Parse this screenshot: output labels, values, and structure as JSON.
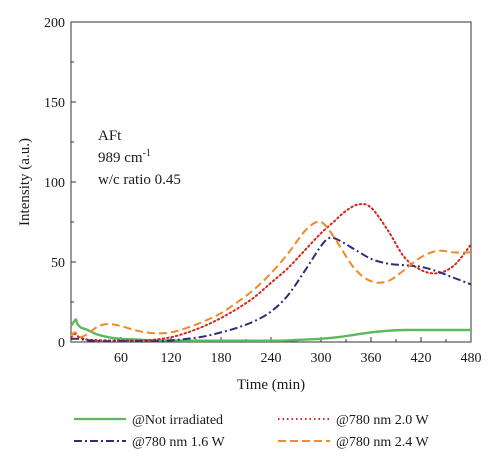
{
  "chart_data": {
    "type": "line",
    "xlabel": "Time (min)",
    "ylabel": "Intensity (a.u.)",
    "xlim": [
      0,
      480
    ],
    "ylim": [
      0,
      200
    ],
    "xticks": [
      60,
      120,
      180,
      240,
      300,
      360,
      420,
      480
    ],
    "yticks": [
      0,
      50,
      100,
      150,
      200
    ],
    "grid": false,
    "legend_position": "bottom",
    "annotation": {
      "line1": "AFt",
      "line2_base": "989 cm",
      "line2_sup": "-1",
      "line3": "w/c ratio 0.45"
    },
    "series": [
      {
        "name": "@Not irradiated",
        "color": "#5cb85c",
        "dash": "solid",
        "x": [
          0,
          4,
          6,
          8,
          12,
          20,
          30,
          45,
          60,
          80,
          100,
          120,
          140,
          160,
          180,
          200,
          220,
          240,
          260,
          280,
          300,
          320,
          340,
          360,
          380,
          400,
          420,
          440,
          460,
          480
        ],
        "y": [
          10,
          13,
          14,
          11,
          9,
          7.5,
          5,
          3,
          2,
          1.5,
          1,
          1,
          0.8,
          0.8,
          0.8,
          0.8,
          0.8,
          0.8,
          1,
          1.5,
          2,
          3,
          4.5,
          6,
          7,
          7.5,
          7.5,
          7.5,
          7.5,
          7.5
        ]
      },
      {
        "name": "@780 nm 2.0 W",
        "color": "#d7261e",
        "dash": "dotted",
        "x": [
          0,
          5,
          10,
          20,
          40,
          60,
          80,
          100,
          120,
          140,
          160,
          180,
          200,
          220,
          240,
          260,
          280,
          300,
          315,
          330,
          345,
          360,
          380,
          400,
          420,
          440,
          460,
          480
        ],
        "y": [
          3,
          5,
          3,
          1.5,
          1,
          1,
          1,
          1.5,
          3,
          6,
          10,
          15,
          21,
          28,
          37,
          46,
          57,
          68,
          75,
          82,
          86,
          84,
          70,
          53,
          45,
          43,
          48,
          61
        ]
      },
      {
        "name": "@780 nm 1.6 W",
        "color": "#2e2e7a",
        "dash": "dashdot",
        "x": [
          0,
          10,
          20,
          40,
          60,
          80,
          100,
          120,
          140,
          160,
          180,
          200,
          220,
          240,
          260,
          280,
          300,
          310,
          320,
          340,
          360,
          380,
          400,
          420,
          440,
          460,
          480
        ],
        "y": [
          2,
          2,
          1,
          0.5,
          0.5,
          0.5,
          0.5,
          1,
          2,
          3.5,
          6,
          9,
          13,
          19,
          29,
          44,
          60,
          65,
          64,
          58,
          52,
          49,
          48,
          47,
          44,
          40,
          36
        ]
      },
      {
        "name": "@780 nm 2.4 W",
        "color": "#f08a24",
        "dash": "dashed",
        "x": [
          0,
          5,
          10,
          20,
          30,
          40,
          50,
          60,
          80,
          100,
          120,
          140,
          160,
          180,
          200,
          220,
          240,
          260,
          280,
          295,
          305,
          320,
          340,
          360,
          380,
          400,
          420,
          440,
          460,
          480
        ],
        "y": [
          4,
          6,
          3,
          5,
          9,
          11,
          11,
          10,
          7,
          5.5,
          6,
          9,
          13,
          18,
          25,
          33,
          43,
          55,
          69,
          75,
          73,
          62,
          46,
          38,
          38,
          45,
          53,
          57,
          56,
          56
        ]
      }
    ]
  }
}
